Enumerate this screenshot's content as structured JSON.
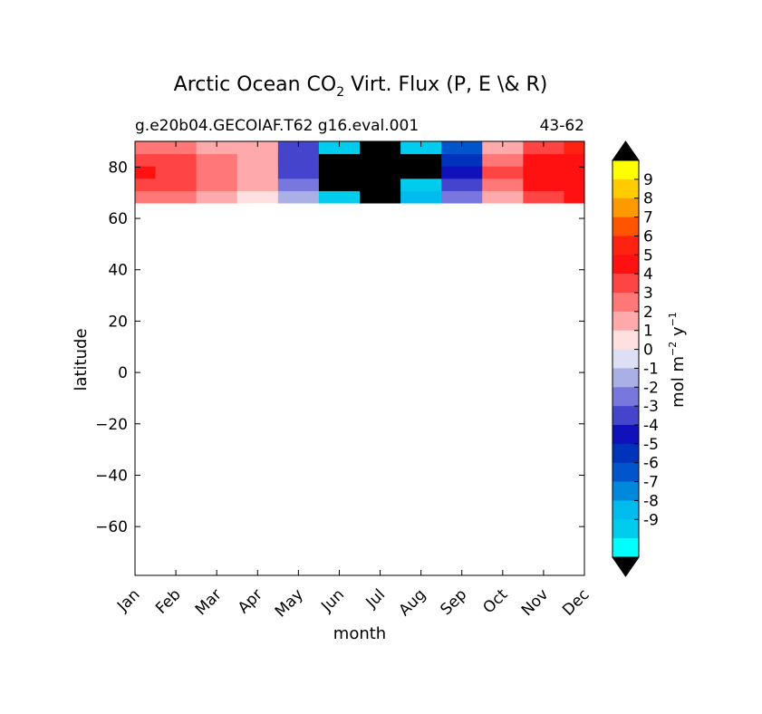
{
  "chart_data": {
    "type": "heatmap",
    "title_main": "Arctic Ocean CO",
    "title_sub": "2",
    "title_rest": " Virt. Flux (P, E \\& R)",
    "subtitle_left": "g.e20b04.GECOIAF.T62 g16.eval.001",
    "subtitle_right": "43-62",
    "xlabel": "month",
    "ylabel": "latitude",
    "x_ticks": [
      "Jan",
      "Feb",
      "Mar",
      "Apr",
      "May",
      "Jun",
      "Jul",
      "Aug",
      "Sep",
      "Oct",
      "Nov",
      "Dec"
    ],
    "y_ticks": [
      80,
      60,
      40,
      20,
      0,
      -20,
      -40,
      -60
    ],
    "y_tick_labels": [
      "80",
      "60",
      "40",
      "20",
      "0",
      "−20",
      "−40",
      "−60"
    ],
    "ylim": [
      -79,
      90
    ],
    "data_lat_range": [
      66,
      90
    ],
    "colorbar": {
      "label": "mol m",
      "label_sup1": "−2",
      "label_mid": " y",
      "label_sup2": "−1",
      "ticks": [
        "9",
        "8",
        "7",
        "6",
        "5",
        "4",
        "3",
        "2",
        "1",
        "0",
        "-1",
        "-2",
        "-3",
        "-4",
        "-5",
        "-6",
        "-7",
        "-8",
        "-9"
      ],
      "colors_top_to_bottom": [
        "#ffff00",
        "#ffcc00",
        "#ff9900",
        "#ff5500",
        "#ff2211",
        "#ff1111",
        "#ff4444",
        "#ff7777",
        "#ffaaaa",
        "#ffe0e0",
        "#dde0f4",
        "#aab0e6",
        "#7777dd",
        "#4444cc",
        "#1111bb",
        "#0033bb",
        "#0055cc",
        "#0088dd",
        "#00bbee",
        "#00ccee",
        "#00ffff"
      ],
      "over_color": "#000000",
      "under_color": "#000000"
    },
    "monthly_flux": [
      {
        "month": "Jan",
        "values": [
          3,
          4,
          5,
          4,
          3
        ]
      },
      {
        "month": "Feb",
        "values": [
          3,
          4,
          4,
          4,
          3
        ]
      },
      {
        "month": "Mar",
        "values": [
          2,
          3,
          3,
          3,
          2
        ]
      },
      {
        "month": "Apr",
        "values": [
          1,
          2,
          2,
          2,
          2
        ]
      },
      {
        "month": "May",
        "values": [
          -1,
          -2,
          -3,
          -3,
          -3
        ]
      },
      {
        "month": "Jun",
        "values": [
          -9,
          -10,
          -10,
          -10,
          -9
        ]
      },
      {
        "month": "Jul",
        "values": [
          -10,
          -10,
          -10,
          -10,
          -10
        ]
      },
      {
        "month": "Aug",
        "values": [
          -8,
          -9,
          -10,
          -10,
          -9
        ]
      },
      {
        "month": "Sep",
        "values": [
          -2,
          -3,
          -4,
          -5,
          -6
        ]
      },
      {
        "month": "Oct",
        "values": [
          2,
          3,
          4,
          3,
          2
        ]
      },
      {
        "month": "Nov",
        "values": [
          4,
          5,
          5,
          5,
          4
        ]
      },
      {
        "month": "Dec",
        "values": [
          5,
          5,
          5,
          5,
          6
        ]
      }
    ]
  }
}
